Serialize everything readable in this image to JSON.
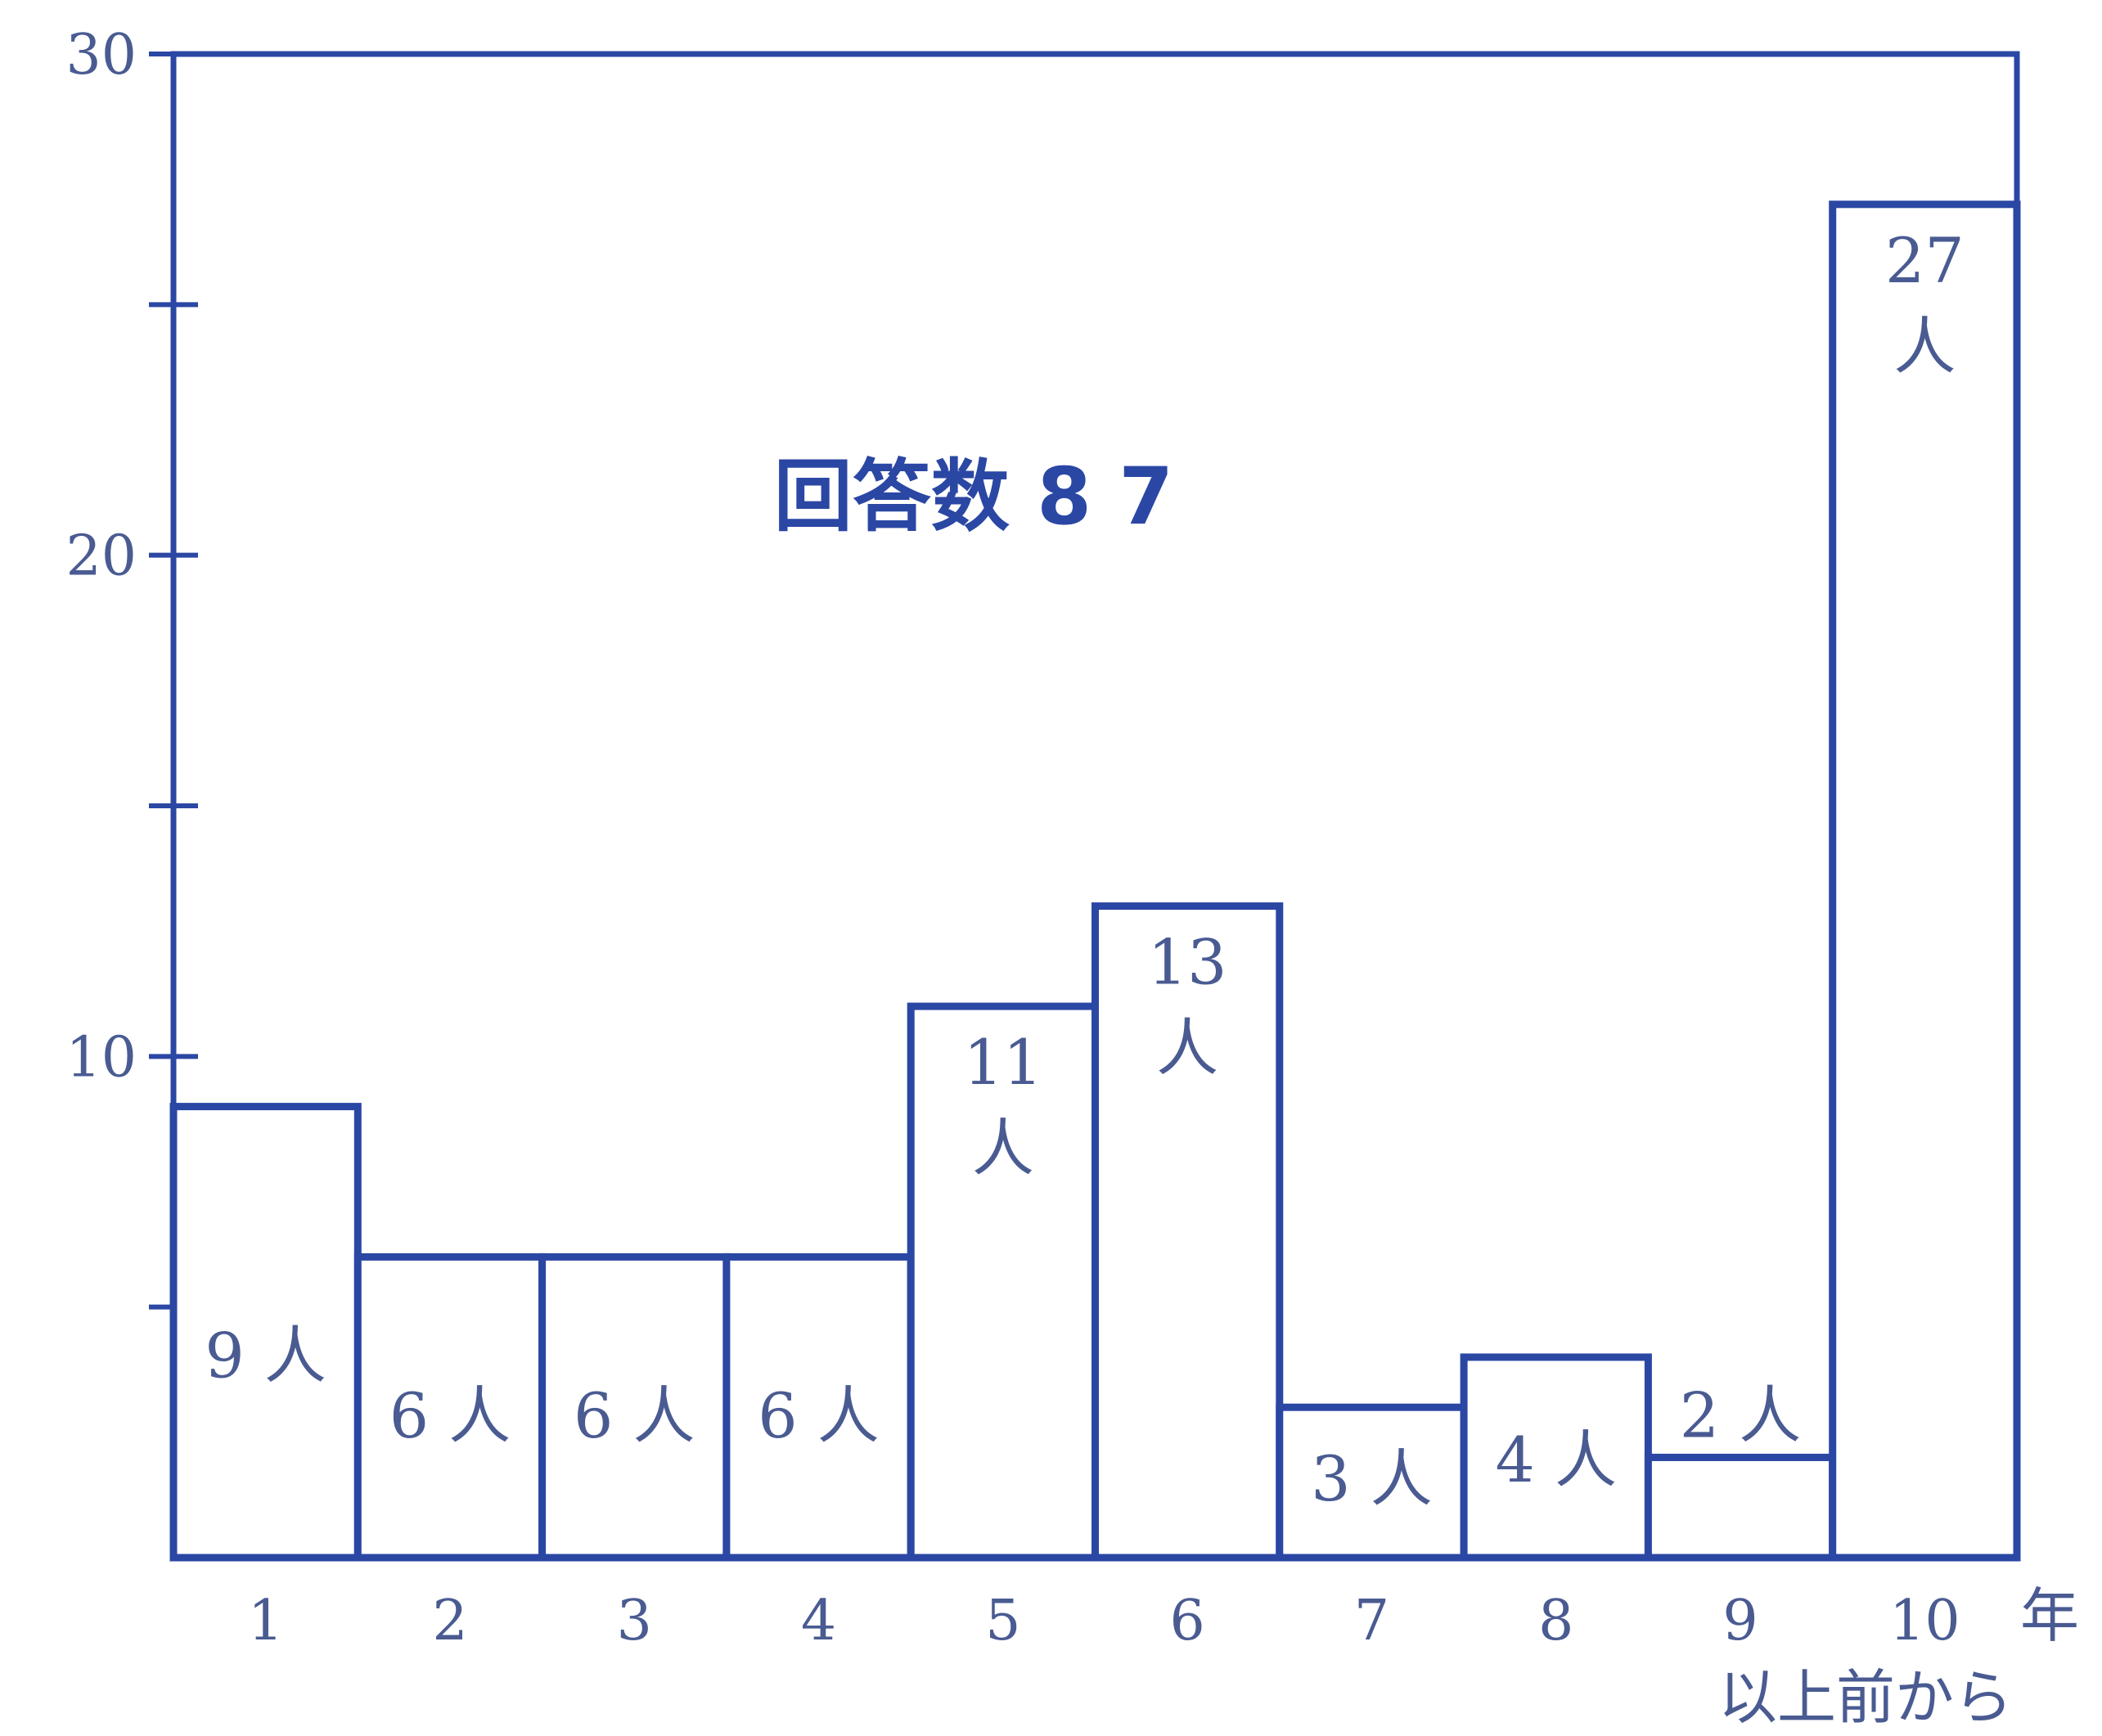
{
  "chart_data": {
    "type": "bar",
    "title": "回答数 8 7",
    "categories": [
      "1",
      "2",
      "3",
      "4",
      "5",
      "6",
      "7",
      "8",
      "9",
      "10"
    ],
    "values": [
      9,
      6,
      6,
      6,
      11,
      13,
      3,
      4,
      2,
      27
    ],
    "bar_labels": [
      "9 人",
      "6 人",
      "6 人",
      "6 人",
      "11 人",
      "13 人",
      "3 人",
      "4 人",
      "2 人",
      "27 人"
    ],
    "xlabel": "年",
    "last_category_note": "以上前から",
    "ylim": [
      0,
      30
    ],
    "yticks": [
      10,
      20,
      30
    ],
    "minor_yticks": [
      5,
      15,
      25
    ],
    "grid": false,
    "colors": {
      "line": "#2b47a4",
      "text": "#4a5b92",
      "background": "#ffffff"
    }
  }
}
